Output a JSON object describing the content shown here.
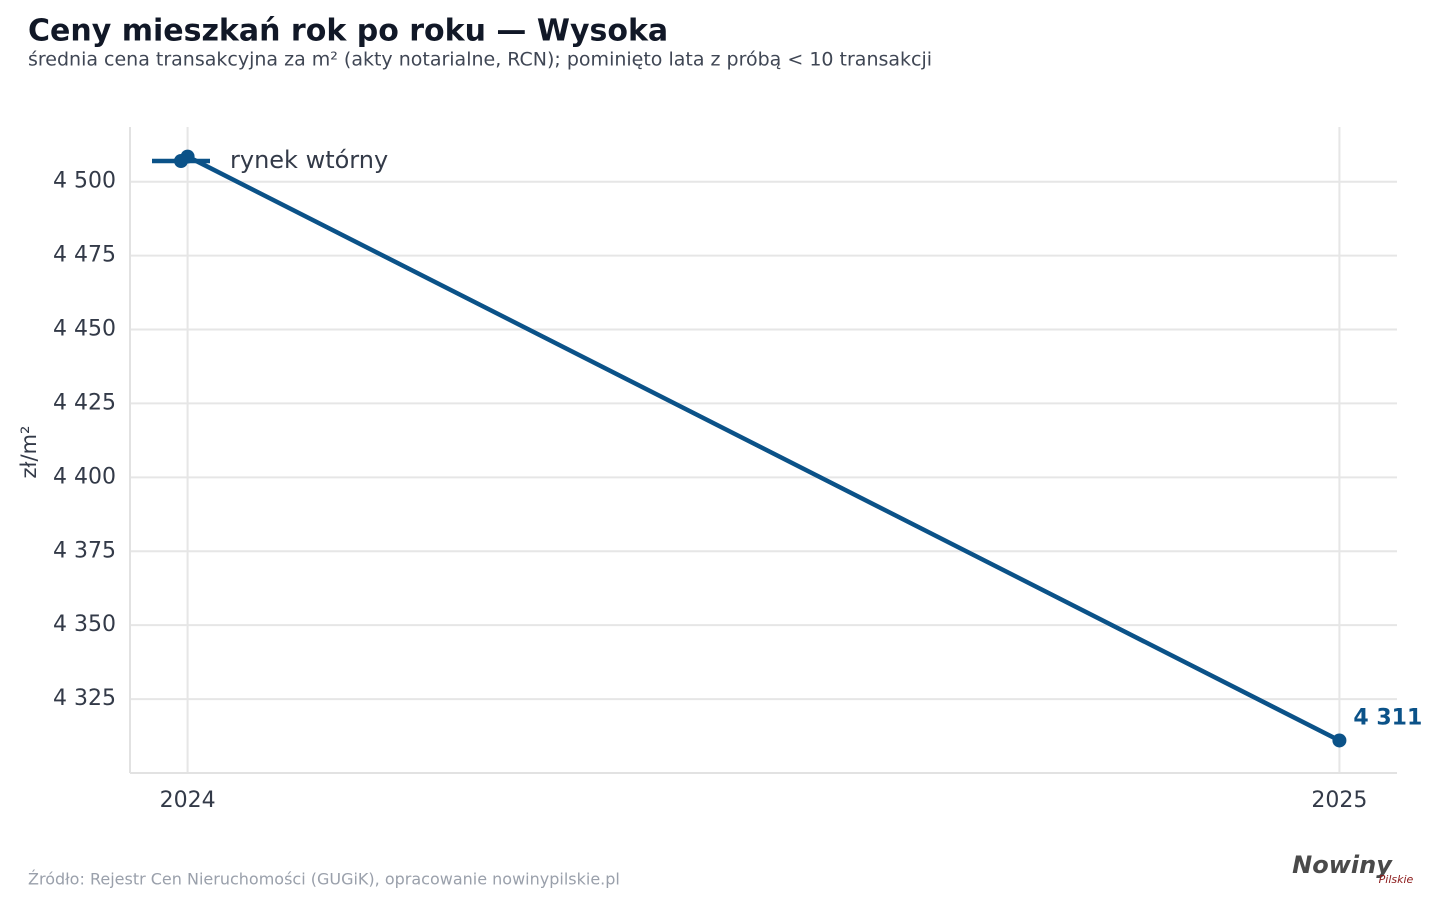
{
  "chart_data": {
    "type": "line",
    "title": "Ceny mieszkań rok po roku — Wysoka",
    "subtitle": "średnia cena transakcyjna za m² (akty notarialne, RCN); pominięto lata z próbą < 10 transakcji",
    "y_label": "zł/m²",
    "x": [
      2024,
      2025
    ],
    "series": [
      {
        "name": "rynek wtórny",
        "color": "#0b5288",
        "values": [
          4508.5,
          4311
        ],
        "value_labels": [
          null,
          "4 311"
        ]
      }
    ],
    "xlim": [
      2023.95,
      2025.05
    ],
    "xticks": [
      2024,
      2025
    ],
    "ylim": [
      4300,
      4518.5
    ],
    "yticks": [
      {
        "value": 4325,
        "label": "4 325"
      },
      {
        "value": 4350,
        "label": "4 350"
      },
      {
        "value": 4375,
        "label": "4 375"
      },
      {
        "value": 4400,
        "label": "4 400"
      },
      {
        "value": 4425,
        "label": "4 425"
      },
      {
        "value": 4450,
        "label": "4 450"
      },
      {
        "value": 4475,
        "label": "4 475"
      },
      {
        "value": 4500,
        "label": "4 500"
      }
    ],
    "grid": true,
    "legend": "upper left"
  },
  "source": "Źródło: Rejestr Cen Nieruchomości (GUGiK), opracowanie nowinypilskie.pl",
  "logo": {
    "main": "Nowiny",
    "sub": "Pilskie"
  }
}
